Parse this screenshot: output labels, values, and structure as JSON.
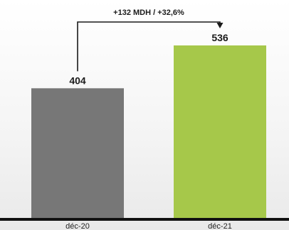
{
  "chart_data": {
    "type": "bar",
    "categories": [
      "déc-20",
      "déc-21"
    ],
    "values": [
      404,
      536
    ],
    "value_labels": [
      "404",
      "536"
    ],
    "colors": [
      "#777777",
      "#a6c84a"
    ],
    "ylim": [
      0,
      560
    ],
    "grid": false,
    "legend": "none",
    "title": "",
    "xlabel": "",
    "ylabel": "",
    "annotation": {
      "text": "+132 MDH /  +32,6%",
      "from_category": "déc-20",
      "to_category": "déc-21"
    }
  }
}
